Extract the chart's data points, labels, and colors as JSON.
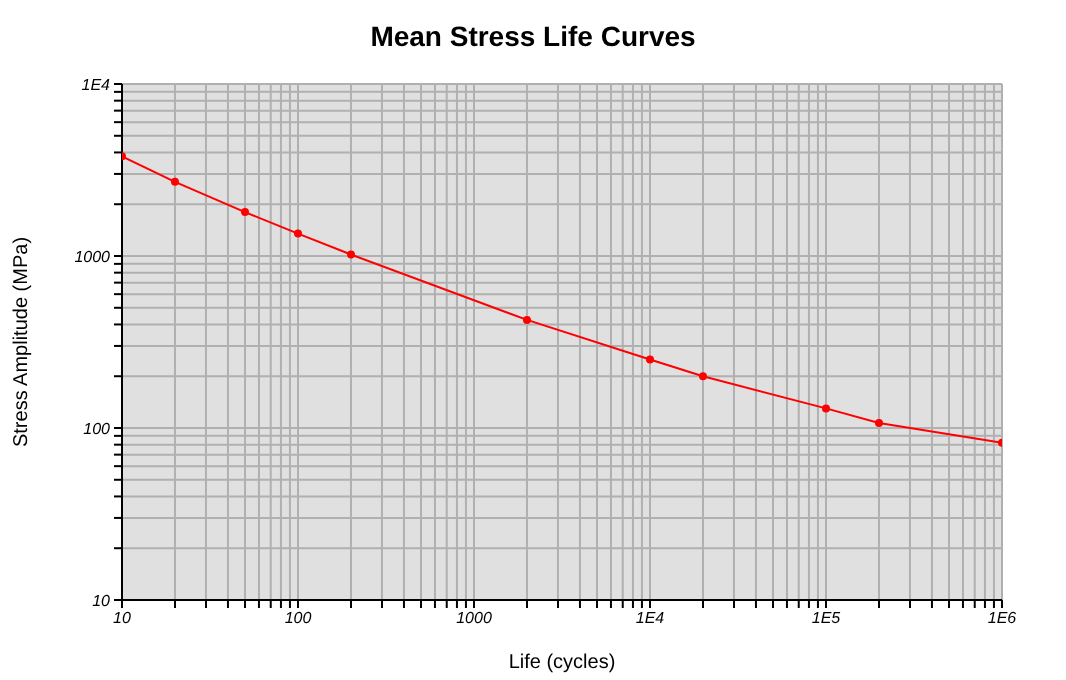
{
  "chart_data": {
    "type": "line",
    "title": "Mean Stress Life Curves",
    "xlabel": "Life (cycles)",
    "ylabel": "Stress Amplitude (MPa)",
    "x": [
      10,
      20,
      50,
      100,
      200,
      2000,
      10000,
      20000,
      100000,
      200000,
      1000000
    ],
    "series": [
      {
        "color": "#ff0000",
        "values": [
          3800,
          2700,
          1800,
          1350,
          1020,
          425,
          250,
          200,
          130,
          107,
          82
        ]
      }
    ],
    "log": "xy",
    "grid": true,
    "marker": "circle",
    "line_style": "solid",
    "legend": false,
    "xlim": [
      10,
      1000000
    ],
    "ylim": [
      10,
      10000
    ],
    "xticks": [
      10,
      {
        "value": 20,
        "label": null
      },
      {
        "value": 30,
        "label": null
      },
      {
        "value": 40,
        "label": null
      },
      {
        "value": 50,
        "label": null
      },
      {
        "value": 60,
        "label": null
      },
      {
        "value": 70,
        "label": null
      },
      {
        "value": 80,
        "label": null
      },
      {
        "value": 90,
        "label": null
      },
      100,
      {
        "value": 200,
        "label": null
      },
      {
        "value": 300,
        "label": null
      },
      {
        "value": 400,
        "label": null
      },
      {
        "value": 500,
        "label": null
      },
      {
        "value": 600,
        "label": null
      },
      {
        "value": 700,
        "label": null
      },
      {
        "value": 800,
        "label": null
      },
      {
        "value": 900,
        "label": null
      },
      1000,
      {
        "value": 2000,
        "label": null
      },
      {
        "value": 3000,
        "label": null
      },
      {
        "value": 4000,
        "label": null
      },
      {
        "value": 5000,
        "label": null
      },
      {
        "value": 6000,
        "label": null
      },
      {
        "value": 7000,
        "label": null
      },
      {
        "value": 8000,
        "label": null
      },
      {
        "value": 9000,
        "label": null
      },
      {
        "value": 10000,
        "label": "1E4"
      },
      {
        "value": 20000,
        "label": null
      },
      {
        "value": 30000,
        "label": null
      },
      {
        "value": 40000,
        "label": null
      },
      {
        "value": 50000,
        "label": null
      },
      {
        "value": 60000,
        "label": null
      },
      {
        "value": 70000,
        "label": null
      },
      {
        "value": 80000,
        "label": null
      },
      {
        "value": 90000,
        "label": null
      },
      {
        "value": 100000,
        "label": "1E5"
      },
      {
        "value": 200000,
        "label": null
      },
      {
        "value": 300000,
        "label": null
      },
      {
        "value": 400000,
        "label": null
      },
      {
        "value": 500000,
        "label": null
      },
      {
        "value": 600000,
        "label": null
      },
      {
        "value": 700000,
        "label": null
      },
      {
        "value": 800000,
        "label": null
      },
      {
        "value": 900000,
        "label": null
      },
      {
        "value": 1000000,
        "label": "1E6"
      }
    ],
    "yticks": [
      10,
      {
        "value": 20,
        "label": null
      },
      {
        "value": 30,
        "label": null
      },
      {
        "value": 40,
        "label": null
      },
      {
        "value": 50,
        "label": null
      },
      {
        "value": 60,
        "label": null
      },
      {
        "value": 70,
        "label": null
      },
      {
        "value": 80,
        "label": null
      },
      {
        "value": 90,
        "label": null
      },
      100,
      {
        "value": 200,
        "label": null
      },
      {
        "value": 300,
        "label": null
      },
      {
        "value": 400,
        "label": null
      },
      {
        "value": 500,
        "label": null
      },
      {
        "value": 600,
        "label": null
      },
      {
        "value": 700,
        "label": null
      },
      {
        "value": 800,
        "label": null
      },
      {
        "value": 900,
        "label": null
      },
      1000,
      {
        "value": 2000,
        "label": null
      },
      {
        "value": 3000,
        "label": null
      },
      {
        "value": 4000,
        "label": null
      },
      {
        "value": 5000,
        "label": null
      },
      {
        "value": 6000,
        "label": null
      },
      {
        "value": 7000,
        "label": null
      },
      {
        "value": 8000,
        "label": null
      },
      {
        "value": 9000,
        "label": null
      },
      {
        "value": 10000,
        "label": "1E4"
      }
    ]
  }
}
